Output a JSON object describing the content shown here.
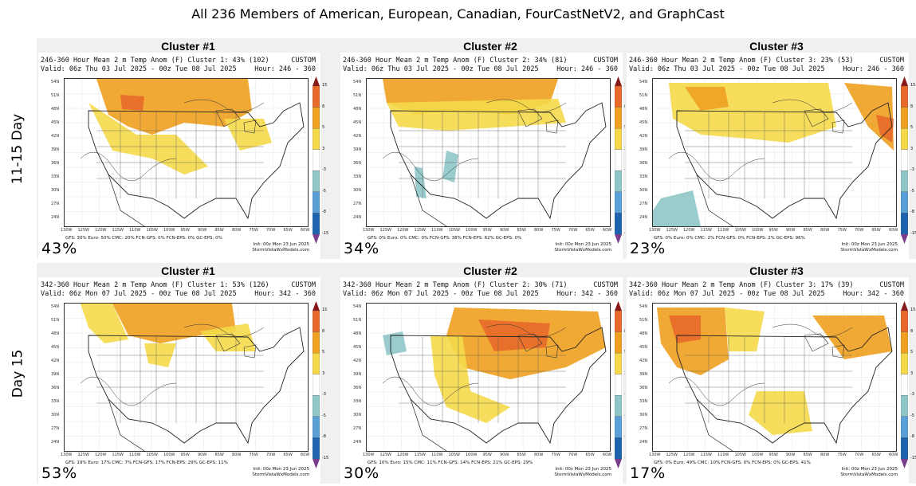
{
  "title": "All 236 Members of American, European, Canadian, FourCastNetV2, and GraphCast",
  "row_labels": [
    "11-15 Day",
    "Day 15"
  ],
  "colorbar": {
    "levels": [
      "15",
      "8",
      "5",
      "3",
      "-3",
      "-5",
      "-8",
      "-15"
    ],
    "colors": [
      "#8a1a1a",
      "#e8692a",
      "#f0a020",
      "#f5d94a",
      "#ffffff",
      "#8fc7c8",
      "#5aa0d8",
      "#1c64b0"
    ]
  },
  "map_axes": {
    "lat_labels": [
      "54N",
      "51N",
      "48N",
      "45N",
      "42N",
      "39N",
      "36N",
      "33N",
      "30N",
      "27N",
      "24N"
    ],
    "lon_labels": [
      "130W",
      "125W",
      "120W",
      "115W",
      "110W",
      "105W",
      "100W",
      "95W",
      "90W",
      "85W",
      "80W",
      "75W",
      "70W",
      "65W",
      "60W"
    ]
  },
  "panels": [
    {
      "cluster": "Cluster #1",
      "header1": "246-360 Hour Mean 2 m Temp Anom (F) Cluster 1: 43% (102)",
      "custom": "CUSTOM",
      "header2": "Valid: 06z Thu 03 Jul 2025 - 00z Tue 08 Jul 2025",
      "hour": "Hour: 246 - 360",
      "pct": "43%",
      "members": "GFS: 30%  Euro: 50%  CMC: 20%  FCN-GFS: 0%  FCN-EPS: 0%  GC-EPS: 0%",
      "init": "Init: 00z Mon 23 Jun 2025",
      "site": "StormVistaWxModels.com"
    },
    {
      "cluster": "Cluster #2",
      "header1": "246-360 Hour Mean 2 m Temp Anom (F) Cluster 2: 34% (81)",
      "custom": "CUSTOM",
      "header2": "Valid: 06z Thu 03 Jul 2025 - 00z Tue 08 Jul 2025",
      "hour": "Hour: 246 - 360",
      "pct": "34%",
      "members": "GFS: 0%  Euro: 0%  CMC: 0%  FCN-GFS: 38%  FCN-EPS: 62%  GC-EPS: 0%",
      "init": "Init: 00z Mon 23 Jun 2025",
      "site": "StormVistaWxModels.com"
    },
    {
      "cluster": "Cluster #3",
      "header1": "246-360 Hour Mean 2 m Temp Anom (F) Cluster 3: 23% (53)",
      "custom": "CUSTOM",
      "header2": "Valid: 06z Thu 03 Jul 2025 - 00z Tue 08 Jul 2025",
      "hour": "Hour: 246 - 360",
      "pct": "23%",
      "members": "GFS: 0%  Euro: 0%  CMC: 2%  FCN-GFS: 0%  FCN-EPS: 2%  GC-EPS: 96%",
      "init": "Init: 00z Mon 23 Jun 2025",
      "site": "StormVistaWxModels.com"
    },
    {
      "cluster": "Cluster #1",
      "header1": "342-360 Hour Mean 2 m Temp Anom (F) Cluster 1: 53% (126)",
      "custom": "CUSTOM",
      "header2": "Valid: 06z Mon 07 Jul 2025 - 00z Tue 08 Jul 2025",
      "hour": "Hour: 342 - 360",
      "pct": "53%",
      "members": "GFS: 19%  Euro: 17%  CMC: 7%  FCN-GFS: 17%  FCN-EPS: 29%  GC-EPS: 11%",
      "init": "Init: 00z Mon 23 Jun 2025",
      "site": "StormVistaWxModels.com"
    },
    {
      "cluster": "Cluster #2",
      "header1": "342-360 Hour Mean 2 m Temp Anom (F) Cluster 2: 30% (71)",
      "custom": "CUSTOM",
      "header2": "Valid: 06z Mon 07 Jul 2025 - 00z Tue 08 Jul 2025",
      "hour": "Hour: 342 - 360",
      "pct": "30%",
      "members": "GFS: 10%  Euro: 15%  CMC: 11%  FCN-GFS: 14%  FCN-EPS: 21%  GC-EPS: 29%",
      "init": "Init: 00z Mon 23 Jun 2025",
      "site": "StormVistaWxModels.com"
    },
    {
      "cluster": "Cluster #3",
      "header1": "342-360 Hour Mean 2 m Temp Anom (F) Cluster 3: 17% (39)",
      "custom": "CUSTOM",
      "header2": "Valid: 06z Mon 07 Jul 2025 - 00z Tue 08 Jul 2025",
      "hour": "Hour: 342 - 360",
      "pct": "17%",
      "members": "GFS: 0%  Euro: 49%  CMC: 10%  FCN-GFS: 0%  FCN-EPS: 0%  GC-EPS: 41%",
      "init": "Init: 00z Mon 23 Jun 2025",
      "site": "StormVistaWxModels.com"
    }
  ]
}
